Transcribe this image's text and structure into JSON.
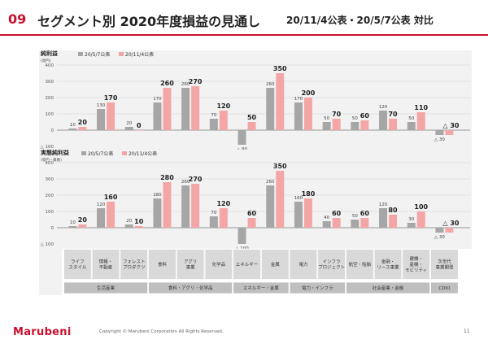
{
  "header": {
    "number": "09",
    "title": "セグメント別 2020年度損益の見通し",
    "subtitle": "20/11/4公表・20/5/7公表 対比"
  },
  "colors": {
    "old_series": "#a6a6a6",
    "new_series": "#f4a6a6",
    "accent": "#c8102e"
  },
  "chart_data": [
    {
      "type": "bar",
      "title": "純利益",
      "ylabel": "(億円)",
      "ylim": [
        -100,
        400
      ],
      "yticks": [
        400,
        300,
        200,
        100,
        0
      ],
      "ytick_labels": [
        "400",
        "300",
        "200",
        "100",
        "0"
      ],
      "neg_tick_label": "△ 100",
      "legend": [
        "20/5/7公表",
        "20/11/4公表"
      ],
      "legend_position": "top-left",
      "grid": true,
      "categories": [
        "ライフスタイル",
        "情報・不動産",
        "フォレストプロダクツ",
        "食料",
        "アグリ事業",
        "化学品",
        "エネルギー",
        "金属",
        "電力",
        "インフラプロジェクト",
        "航空・船舶",
        "金融・リース事業",
        "建機・産機・モビリティ",
        "次世代事業開発"
      ],
      "series": [
        {
          "name": "20/5/7公表",
          "values": [
            10,
            130,
            20,
            170,
            260,
            70,
            -90,
            260,
            170,
            50,
            50,
            120,
            50,
            -30
          ]
        },
        {
          "name": "20/11/4公表",
          "values": [
            20,
            170,
            0,
            260,
            270,
            120,
            50,
            350,
            200,
            70,
            60,
            70,
            110,
            -30
          ]
        }
      ],
      "labels_old": [
        "10",
        "130",
        "20",
        "170",
        "260",
        "70",
        "△ 90",
        "260",
        "170",
        "50",
        "50",
        "120",
        "50",
        "△ 30"
      ],
      "labels_new": [
        "20",
        "170",
        "0",
        "260",
        "270",
        "120",
        "50",
        "350",
        "200",
        "70",
        "60",
        "70",
        "110",
        "△ 30"
      ]
    },
    {
      "type": "bar",
      "title": "実態純利益",
      "ylabel": "(億円・概数)",
      "ylim": [
        -100,
        400
      ],
      "yticks": [
        400,
        300,
        200,
        100,
        0
      ],
      "ytick_labels": [
        "400",
        "300",
        "200",
        "100",
        "0"
      ],
      "neg_tick_label": "△ 100",
      "legend": [
        "20/5/7公表",
        "20/11/4公表"
      ],
      "legend_position": "top-left",
      "grid": true,
      "categories": [
        "ライフスタイル",
        "情報・不動産",
        "フォレストプロダクツ",
        "食料",
        "アグリ事業",
        "化学品",
        "エネルギー",
        "金属",
        "電力",
        "インフラプロジェクト",
        "航空・船舶",
        "金融・リース事業",
        "建機・産機・モビリティ",
        "次世代事業開発"
      ],
      "series": [
        {
          "name": "20/5/7公表",
          "values": [
            10,
            120,
            20,
            180,
            260,
            70,
            -100,
            260,
            160,
            40,
            50,
            120,
            30,
            -30
          ]
        },
        {
          "name": "20/11/4公表",
          "values": [
            20,
            160,
            10,
            280,
            270,
            120,
            60,
            350,
            180,
            60,
            60,
            80,
            100,
            -30
          ]
        }
      ],
      "labels_old": [
        "10",
        "120",
        "20",
        "180",
        "260",
        "70",
        "△ 100",
        "260",
        "160",
        "40",
        "50",
        "120",
        "30",
        "△ 30"
      ],
      "labels_new": [
        "20",
        "160",
        "10",
        "280",
        "270",
        "120",
        "60",
        "350",
        "180",
        "60",
        "60",
        "80",
        "100",
        "△ 30"
      ]
    }
  ],
  "table": {
    "segments": [
      [
        "ライフ",
        "スタイル"
      ],
      [
        "情報・",
        "不動産"
      ],
      [
        "フォレスト",
        "プロダクツ"
      ],
      [
        "食料"
      ],
      [
        "アグリ",
        "事業"
      ],
      [
        "化学品"
      ],
      [
        "エネルギー"
      ],
      [
        "金属"
      ],
      [
        "電力"
      ],
      [
        "インフラ",
        "プロジェクト"
      ],
      [
        "航空・船舶"
      ],
      [
        "金融・",
        "リース事業"
      ],
      [
        "建機・",
        "産機・",
        "モビリティ"
      ],
      [
        "次世代",
        "事業開発"
      ]
    ],
    "groups": [
      {
        "label": "生活産業",
        "start": 0,
        "span": 3
      },
      {
        "label": "食料・アグリ・化学品",
        "start": 3,
        "span": 3
      },
      {
        "label": "エネルギー・金属",
        "start": 6,
        "span": 2
      },
      {
        "label": "電力・インフラ",
        "start": 8,
        "span": 2
      },
      {
        "label": "社会産業・金融",
        "start": 10,
        "span": 3
      },
      {
        "label": "CDIO",
        "start": 13,
        "span": 1
      }
    ]
  },
  "footer": {
    "logo": "Marubeni",
    "copyright": "Copyright © Marubeni Corporation All Rights Reserved.",
    "page": "11"
  }
}
